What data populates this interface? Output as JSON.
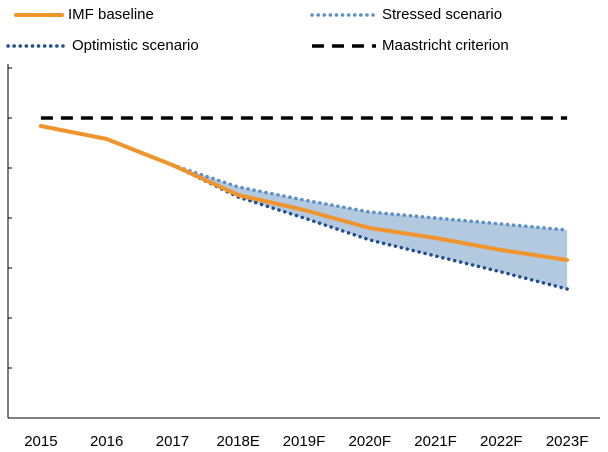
{
  "chart_data": {
    "type": "line",
    "categories": [
      "2015",
      "2016",
      "2017",
      "2018E",
      "2019F",
      "2020F",
      "2021F",
      "2022F",
      "2023F"
    ],
    "series": [
      {
        "name": "IMF baseline",
        "color": "#f0952e",
        "style": "solid",
        "values": [
          58.4,
          55.8,
          50.6,
          44.6,
          41.6,
          38,
          36,
          33.6,
          31.6
        ]
      },
      {
        "name": "Stressed scenario",
        "color": "#5b8fc7",
        "style": "dotted",
        "values": [
          null,
          null,
          50.6,
          46.2,
          43.6,
          41.2,
          40,
          38.8,
          37.6
        ]
      },
      {
        "name": "Optimistic scenario",
        "color": "#1f4e8c",
        "style": "dotted",
        "values": [
          null,
          null,
          50.6,
          44.2,
          40,
          35.6,
          32.4,
          29.2,
          25.8
        ]
      },
      {
        "name": "Maastricht criterion",
        "color": "#000000",
        "style": "dashed",
        "values": [
          60,
          60,
          60,
          60,
          60,
          60,
          60,
          60,
          60
        ]
      }
    ],
    "band_color": "#b3c9e0",
    "ylim": [
      0,
      70
    ],
    "yticks": [
      0,
      10,
      20,
      30,
      40,
      50,
      60,
      70
    ]
  }
}
